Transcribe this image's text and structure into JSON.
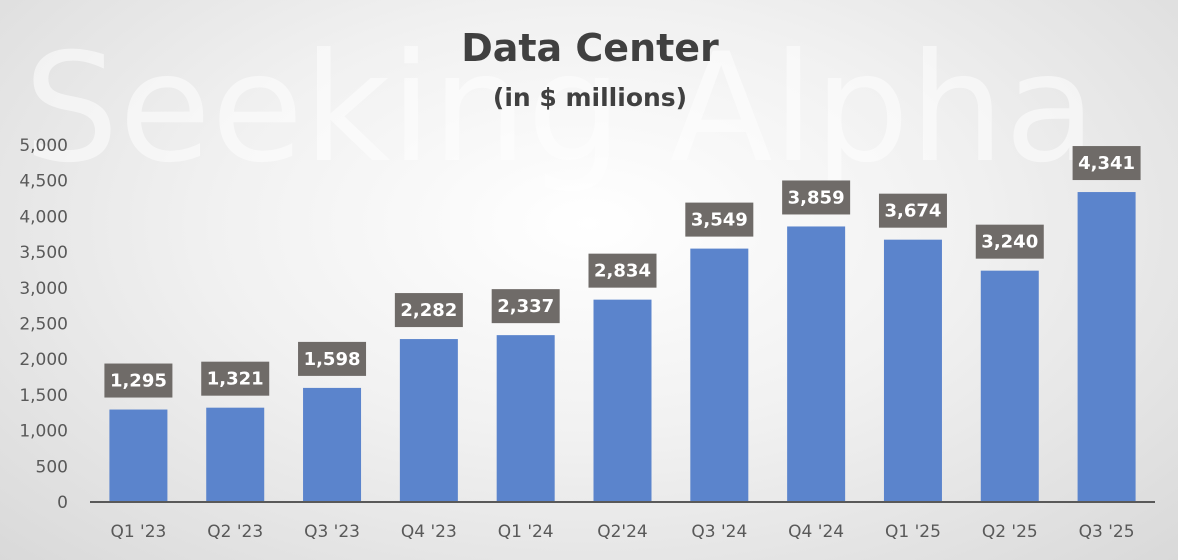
{
  "chart_data": {
    "type": "bar",
    "title": "Data Center",
    "subtitle": "(in $ millions)",
    "watermark": "Seeking Alpha",
    "categories": [
      "Q1 '23",
      "Q2 '23",
      "Q3 '23",
      "Q4 '23",
      "Q1 '24",
      "Q2'24",
      "Q3 '24",
      "Q4 '24",
      "Q1 '25",
      "Q2 '25",
      "Q3 '25"
    ],
    "values": [
      1295,
      1321,
      1598,
      2282,
      2337,
      2834,
      3549,
      3859,
      3674,
      3240,
      4341
    ],
    "data_labels": [
      "1,295",
      "1,321",
      "1,598",
      "2,282",
      "2,337",
      "2,834",
      "3,549",
      "3,859",
      "3,674",
      "3,240",
      "4,341"
    ],
    "y_ticks": [
      0,
      500,
      1000,
      1500,
      2000,
      2500,
      3000,
      3500,
      4000,
      4500,
      5000
    ],
    "y_tick_labels": [
      "0",
      "500",
      "1,000",
      "1,500",
      "2,000",
      "2,500",
      "3,000",
      "3,500",
      "4,000",
      "4,500",
      "5,000"
    ],
    "ylim": [
      0,
      5000
    ],
    "xlabel": "",
    "ylabel": "",
    "grid": false,
    "legend": "none",
    "colors": {
      "bar": "#5b84cc",
      "label_box": "#6f6b68",
      "axis": "#595959"
    }
  }
}
